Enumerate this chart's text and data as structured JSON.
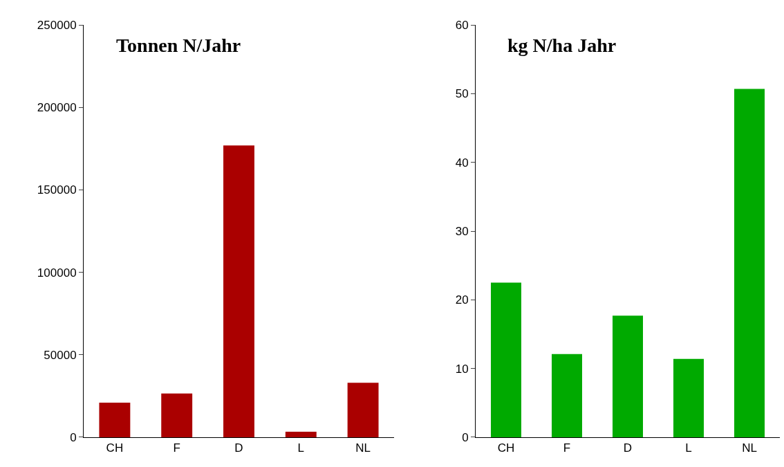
{
  "chart_data": [
    {
      "type": "bar",
      "title": "Tonnen N/Jahr",
      "categories": [
        "CH",
        "F",
        "D",
        "L",
        "NL"
      ],
      "values": [
        21000,
        26500,
        177000,
        3300,
        33000
      ],
      "color": "#aa0000",
      "ylim": [
        0,
        250000
      ],
      "yticks": [
        0,
        50000,
        100000,
        150000,
        200000,
        250000
      ]
    },
    {
      "type": "bar",
      "title": "kg N/ha Jahr",
      "categories": [
        "CH",
        "F",
        "D",
        "L",
        "NL"
      ],
      "values": [
        22.5,
        12.1,
        17.7,
        11.4,
        50.7
      ],
      "color": "#00aa00",
      "ylim": [
        0,
        60
      ],
      "yticks": [
        0,
        10,
        20,
        30,
        40,
        50,
        60
      ]
    }
  ]
}
